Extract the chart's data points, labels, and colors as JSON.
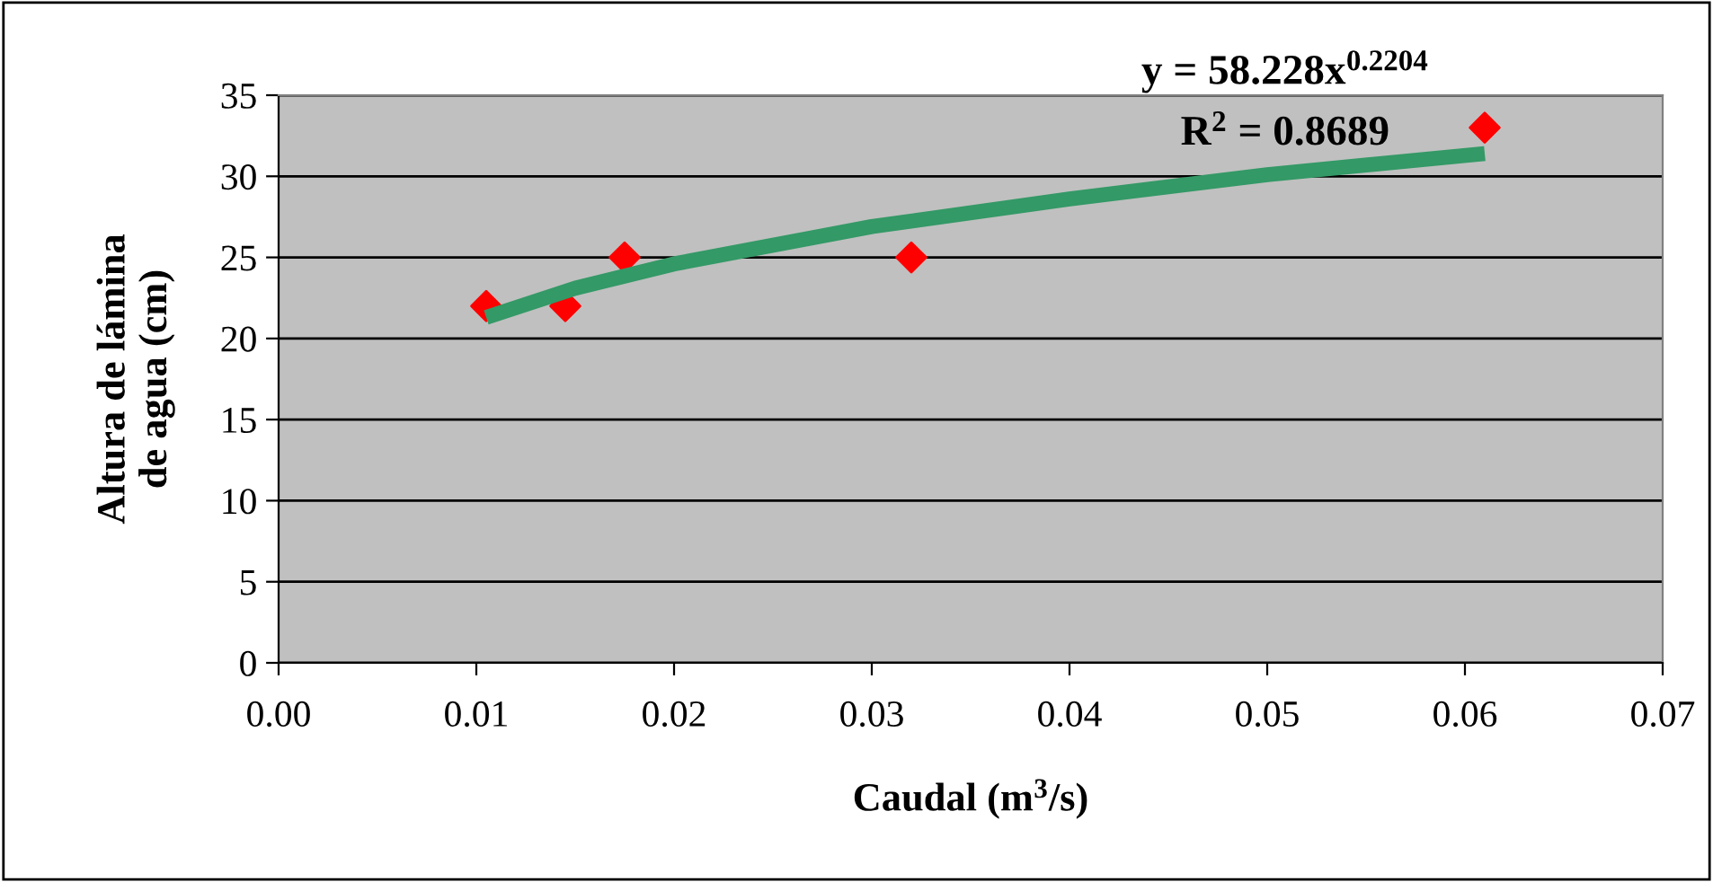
{
  "chart_data": {
    "type": "scatter",
    "xlabel": "Caudal (m$^{3}$/s)",
    "ylabel": "Altura de lámina\nde agua (cm)",
    "annotations": [
      "y = 58.228x$^{0.2204}$",
      "R$^{2}$ = 0.8689"
    ],
    "series": [
      {
        "color": "#ff0000",
        "marker": "diamond",
        "x": [
          0.0105,
          0.0145,
          0.0175,
          0.032,
          0.061
        ],
        "values": [
          22,
          22,
          25,
          25,
          33
        ]
      },
      {
        "type": "line",
        "color": "#339966",
        "marker": "none",
        "line_style": "solid",
        "x": [
          0.0105,
          0.015,
          0.02,
          0.03,
          0.04,
          0.05,
          0.061
        ],
        "values": [
          21.3,
          23.1,
          24.6,
          26.9,
          28.6,
          30.1,
          31.4
        ]
      }
    ],
    "xlim": [
      0,
      0.07
    ],
    "ylim": [
      0,
      35
    ],
    "xticks": [
      {
        "value": 0,
        "label": "0.00"
      },
      {
        "value": 0.01,
        "label": "0.01"
      },
      {
        "value": 0.02,
        "label": "0.02"
      },
      {
        "value": 0.03,
        "label": "0.03"
      },
      {
        "value": 0.04,
        "label": "0.04"
      },
      {
        "value": 0.05,
        "label": "0.05"
      },
      {
        "value": 0.06,
        "label": "0.06"
      },
      {
        "value": 0.07,
        "label": "0.07"
      }
    ],
    "yticks": [
      0,
      5,
      10,
      15,
      20,
      25,
      30,
      35
    ],
    "grid": "y",
    "legend": false
  }
}
